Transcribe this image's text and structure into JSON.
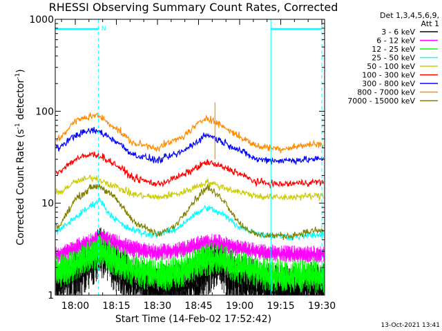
{
  "chart_data": {
    "type": "line",
    "title": "RHESSI Observing Summary Count Rates, Corrected",
    "xlabel": "Start Time (14-Feb-02 17:52:42)",
    "ylabel": "Corrected Count Rate (s",
    "ylabel_sup1": "-1",
    "ylabel_mid": " detector",
    "ylabel_sup2": "-1",
    "ylabel_end": ")",
    "x_range_min": [
      17.8783,
      19.5167
    ],
    "yscale": "log",
    "ylim": [
      1,
      1000
    ],
    "x_tick_labels": [
      "18:00",
      "18:15",
      "18:30",
      "18:45",
      "19:00",
      "19:15",
      "19:30"
    ],
    "x_ticks_min": [
      18.0,
      18.25,
      18.5,
      18.75,
      19.0,
      19.25,
      19.5
    ],
    "y_tick_labels": [
      "1",
      "10",
      "100",
      "1000"
    ],
    "y_ticks": [
      1,
      10,
      100,
      1000
    ],
    "legend_header": [
      "Det 1,3,4,5,6,9,",
      "Att 1"
    ],
    "legend_position": "right",
    "footer_date": "13-Oct-2021 13:41",
    "annotation": "N",
    "night_intervals": [
      [
        17.8783,
        18.1417
      ],
      [
        19.19,
        19.5
      ]
    ],
    "series": [
      {
        "name": "3 - 6 keV",
        "color": "#000000",
        "values_min": [
          17.9,
          18.05,
          18.15,
          18.25,
          18.35,
          18.5,
          18.65,
          18.75,
          18.85,
          19.0,
          19.15,
          19.3,
          19.45
        ],
        "values": [
          1.3,
          1.8,
          3.0,
          2.0,
          1.4,
          1.1,
          1.2,
          1.6,
          2.2,
          1.5,
          1.2,
          1.1,
          1.2
        ]
      },
      {
        "name": "6 - 12 keV",
        "color": "#ff00ff",
        "values_min": [
          17.9,
          18.05,
          18.15,
          18.25,
          18.35,
          18.5,
          18.65,
          18.75,
          18.85,
          19.0,
          19.15,
          19.3,
          19.45
        ],
        "values": [
          2.7,
          3.6,
          4.2,
          3.7,
          3.2,
          2.9,
          3.1,
          3.6,
          3.8,
          3.2,
          2.9,
          2.8,
          2.8
        ]
      },
      {
        "name": "12 - 25 keV",
        "color": "#00ff00",
        "values_min": [
          17.9,
          18.05,
          18.15,
          18.25,
          18.35,
          18.5,
          18.65,
          18.75,
          18.85,
          19.0,
          19.15,
          19.3,
          19.45
        ],
        "values": [
          1.8,
          2.4,
          3.0,
          2.4,
          1.9,
          1.6,
          1.8,
          2.3,
          2.6,
          2.0,
          1.7,
          1.6,
          1.6
        ]
      },
      {
        "name": "25 - 50 keV",
        "color": "#00ffff",
        "values_min": [
          17.9,
          18.0,
          18.1,
          18.15,
          18.2,
          18.3,
          18.45,
          18.6,
          18.7,
          18.8,
          18.9,
          19.0,
          19.15,
          19.3,
          19.45
        ],
        "values": [
          5.0,
          7.0,
          9.5,
          11.0,
          8.0,
          5.5,
          4.5,
          5.0,
          7.0,
          9.0,
          7.5,
          5.5,
          4.5,
          4.3,
          4.5
        ]
      },
      {
        "name": "50 - 100 keV",
        "color": "#cccc00",
        "values_min": [
          17.9,
          18.0,
          18.1,
          18.15,
          18.25,
          18.35,
          18.5,
          18.65,
          18.8,
          18.95,
          19.1,
          19.25,
          19.45
        ],
        "values": [
          13,
          17,
          19,
          18,
          15,
          12.5,
          11.5,
          13,
          17,
          14,
          12,
          11.5,
          12
        ]
      },
      {
        "name": "100 - 300 keV",
        "color": "#ff0000",
        "values_min": [
          17.9,
          18.0,
          18.1,
          18.15,
          18.25,
          18.35,
          18.5,
          18.65,
          18.8,
          18.95,
          19.1,
          19.25,
          19.45
        ],
        "values": [
          22,
          30,
          34,
          33,
          26,
          19,
          16,
          20,
          28,
          23,
          17,
          16,
          17
        ]
      },
      {
        "name": "300 - 800 keV",
        "color": "#0000ff",
        "values_min": [
          17.9,
          18.0,
          18.1,
          18.15,
          18.25,
          18.35,
          18.5,
          18.65,
          18.8,
          18.95,
          19.1,
          19.25,
          19.45
        ],
        "values": [
          40,
          55,
          62,
          60,
          47,
          34,
          29,
          36,
          56,
          42,
          30,
          29,
          30
        ]
      },
      {
        "name": "800 - 7000 keV",
        "color": "#ff8c00",
        "values_min": [
          17.9,
          18.0,
          18.1,
          18.15,
          18.25,
          18.35,
          18.5,
          18.65,
          18.8,
          18.95,
          19.1,
          19.25,
          19.45
        ],
        "values": [
          50,
          78,
          90,
          88,
          65,
          45,
          40,
          52,
          87,
          60,
          42,
          39,
          44
        ]
      },
      {
        "name": "7000 - 15000 keV",
        "color": "#808000",
        "values_min": [
          17.9,
          18.0,
          18.1,
          18.15,
          18.25,
          18.35,
          18.5,
          18.6,
          18.7,
          18.8,
          18.9,
          19.0,
          19.1,
          19.3,
          19.45
        ],
        "values": [
          5.5,
          11,
          15,
          15.5,
          11,
          6.5,
          4.5,
          5.5,
          9.5,
          15,
          11,
          6.0,
          4.5,
          4.4,
          5.0
        ]
      }
    ]
  }
}
